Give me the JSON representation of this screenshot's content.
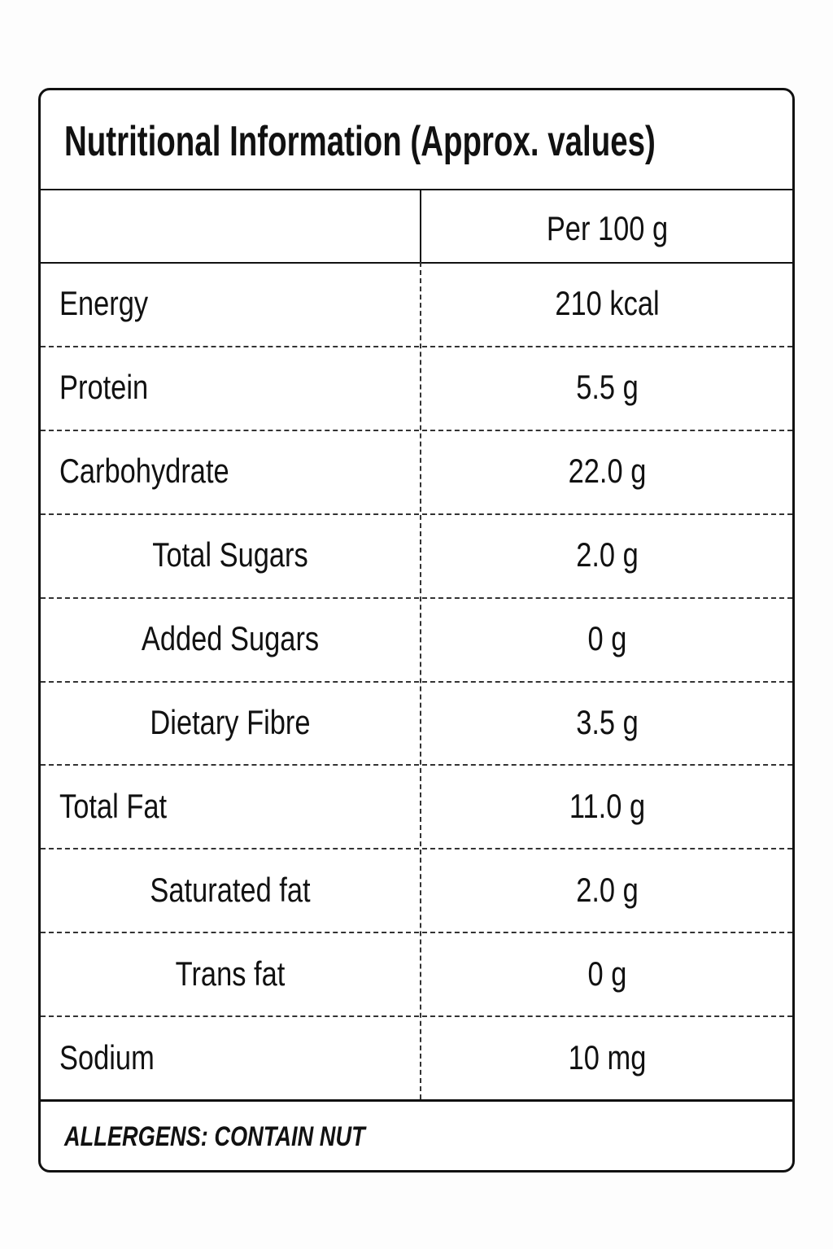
{
  "title": "Nutritional Information (Approx. values)",
  "header": {
    "column": "Per 100 g"
  },
  "rows": [
    {
      "label": "Energy",
      "value": "210 kcal"
    },
    {
      "label": "Protein",
      "value": "5.5 g"
    },
    {
      "label": "Carbohydrate",
      "value": "22.0 g",
      "sub_items": [
        {
          "label": "Total Sugars",
          "value": "2.0 g"
        },
        {
          "label": "Added Sugars",
          "value": "0 g"
        },
        {
          "label": "Dietary Fibre",
          "value": "3.5 g"
        }
      ]
    },
    {
      "label": "Total Fat",
      "value": "11.0 g",
      "sub_items": [
        {
          "label": "Saturated fat",
          "value": "2.0 g"
        },
        {
          "label": "Trans fat",
          "value": "0 g"
        }
      ]
    },
    {
      "label": "Sodium",
      "value": "10 mg"
    }
  ],
  "footer": "ALLERGENS: CONTAIN NUT"
}
